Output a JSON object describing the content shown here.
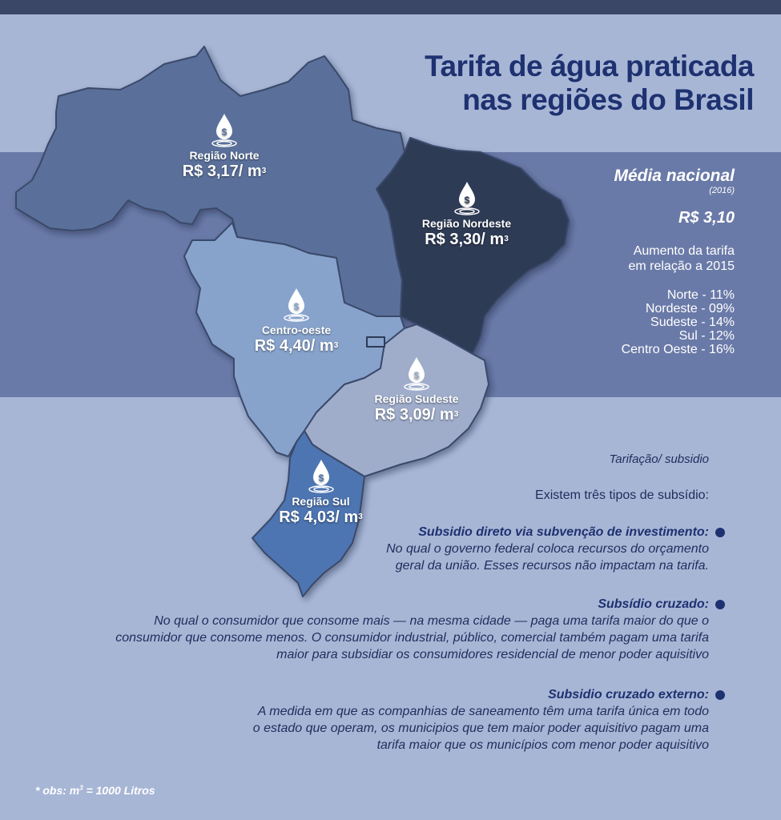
{
  "title": {
    "line1": "Tarifa de água praticada",
    "line2": "nas regiões do Brasil"
  },
  "regions": {
    "norte": {
      "name": "Região Norte",
      "price": "R$ 3,17/ m",
      "unit_exp": "3",
      "color": "#5a709a"
    },
    "nordeste": {
      "name": "Região Nordeste",
      "price": "R$ 3,30/ m",
      "unit_exp": "3",
      "color": "#2d3a55"
    },
    "centro_oeste": {
      "name": "Centro-oeste",
      "price": "R$ 4,40/ m",
      "unit_exp": "3",
      "color": "#87a3cc"
    },
    "sudeste": {
      "name": "Região Sudeste",
      "price": "R$ 3,09/ m",
      "unit_exp": "3",
      "color": "#9fadcb"
    },
    "sul": {
      "name": "Região Sul",
      "price": "R$ 4,03/ m",
      "unit_exp": "3",
      "color": "#4e74b2"
    }
  },
  "media": {
    "title": "Média nacional",
    "year": "(2016)",
    "value": "R$ 3,10",
    "aumento_line1": "Aumento da tarifa",
    "aumento_line2": "em relação a 2015",
    "increases": [
      "Norte - 11%",
      "Nordeste - 09%",
      "Sudeste - 14%",
      "Sul - 12%",
      "Centro Oeste - 16%"
    ]
  },
  "subsidies": {
    "heading": "Tarifação/ subsidio",
    "intro": "Existem três tipos de subsídio:",
    "items": [
      {
        "title": "Subsidio direto via subvenção de investimento:",
        "lines": [
          "No qual o governo federal coloca recursos do orçamento",
          "geral da união. Esses recursos não impactam na tarifa."
        ]
      },
      {
        "title": "Subsídio cruzado:",
        "lines": [
          "No qual o consumidor que consome mais — na mesma cidade — paga uma tarifa maior do que o",
          "consumidor que consome menos. O consumidor industrial, público, comercial também pagam uma tarifa",
          "maior para subsidiar os consumidores residencial de menor poder aquisitivo"
        ]
      },
      {
        "title": "Subsidio cruzado externo:",
        "lines": [
          "A medida em que as companhias de saneamento têm uma tarifa única em todo",
          "o estado que operam, os municipios que tem maior poder aquisitivo pagam uma",
          "tarifa maior que os municípios com menor poder aquisitivo"
        ]
      }
    ]
  },
  "obs": {
    "text": "* obs: m",
    "exp": "3",
    "rest": " = 1000 Litros"
  }
}
